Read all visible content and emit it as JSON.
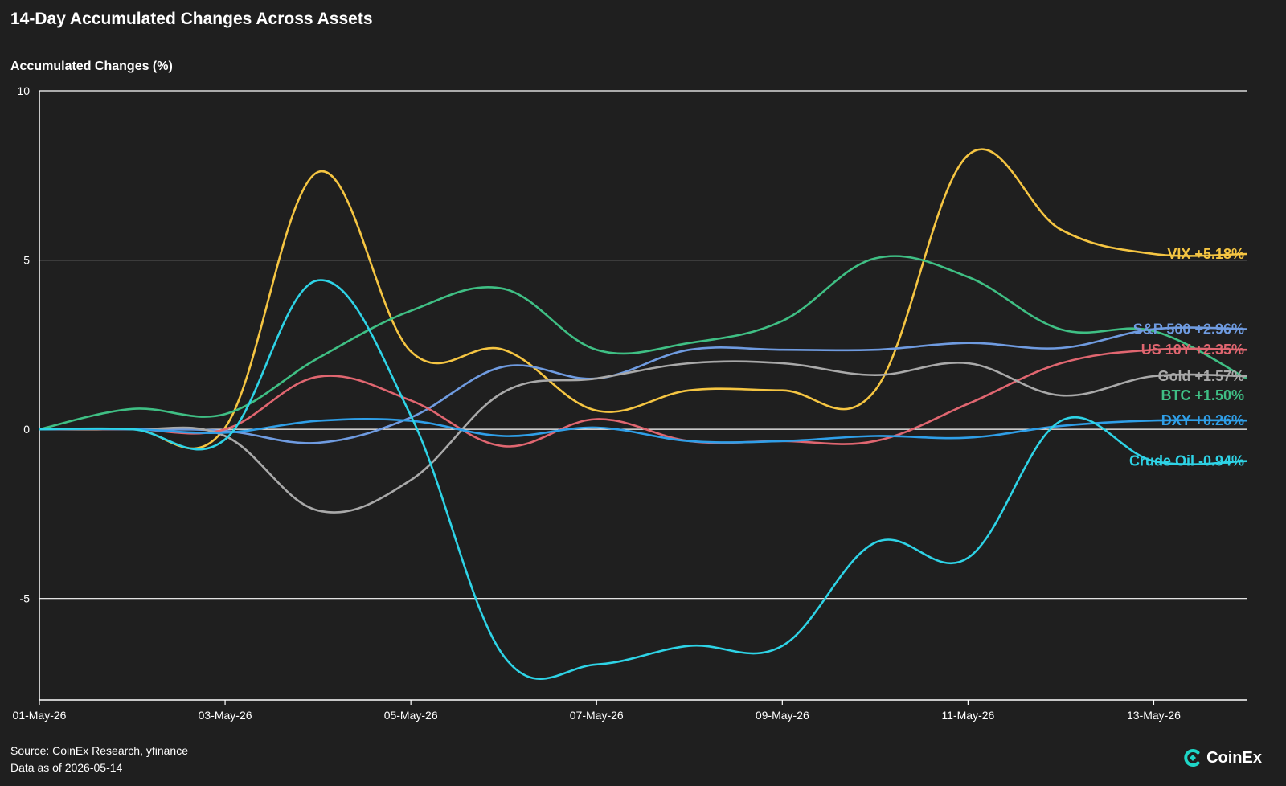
{
  "header": {
    "title": "14-Day Accumulated Changes Across Assets",
    "y_axis_title": "Accumulated Changes (%)"
  },
  "footer": {
    "source": "Source: CoinEx Research, yfinance",
    "data_as_of": "Data as of 2026-05-14",
    "brand": "CoinEx"
  },
  "colors": {
    "background": "#1f1f1f",
    "grid": "#ffffff",
    "brand_accent": "#1ed6c7"
  },
  "chart_data": {
    "type": "line",
    "x": [
      "01-May-26",
      "02-May-26",
      "03-May-26",
      "04-May-26",
      "05-May-26",
      "06-May-26",
      "07-May-26",
      "08-May-26",
      "09-May-26",
      "10-May-26",
      "11-May-26",
      "12-May-26",
      "13-May-26",
      "14-May-26"
    ],
    "x_ticks": [
      "01-May-26",
      "03-May-26",
      "05-May-26",
      "07-May-26",
      "09-May-26",
      "11-May-26",
      "13-May-26"
    ],
    "y_ticks": [
      -5,
      0,
      5,
      10
    ],
    "ylim": [
      -8,
      10
    ],
    "ylabel": "Accumulated Changes (%)",
    "grid": true,
    "series": [
      {
        "name": "VIX",
        "label": "VIX +5.18%",
        "color": "#f5c542",
        "values": [
          0,
          0,
          0.05,
          7.6,
          2.3,
          2.35,
          0.55,
          1.15,
          1.15,
          1.15,
          8.1,
          5.9,
          5.18,
          5.18
        ]
      },
      {
        "name": "S&P 500",
        "label": "S&P 500 +2.96%",
        "color": "#6f9be0",
        "values": [
          0,
          0,
          -0.05,
          -0.4,
          0.35,
          1.85,
          1.5,
          2.35,
          2.35,
          2.35,
          2.55,
          2.4,
          2.96,
          2.96
        ]
      },
      {
        "name": "BTC",
        "label": "BTC +1.50%",
        "color": "#3fbf84",
        "values": [
          0,
          0.6,
          0.45,
          2.1,
          3.5,
          4.15,
          2.35,
          2.55,
          3.2,
          5.05,
          4.5,
          2.95,
          2.9,
          1.5
        ]
      },
      {
        "name": "US 10Y",
        "label": "US 10Y +2.35%",
        "color": "#e06670",
        "values": [
          0,
          0,
          0,
          1.55,
          0.85,
          -0.5,
          0.3,
          -0.35,
          -0.35,
          -0.35,
          0.75,
          1.95,
          2.35,
          2.35
        ]
      },
      {
        "name": "Gold",
        "label": "Gold +1.57%",
        "color": "#a9a9a9",
        "values": [
          0,
          0,
          -0.2,
          -2.4,
          -1.5,
          1.1,
          1.5,
          1.95,
          1.95,
          1.6,
          1.95,
          1.0,
          1.57,
          1.57
        ]
      },
      {
        "name": "DXY",
        "label": "DXY +0.26%",
        "color": "#2f9fe8",
        "values": [
          0,
          0,
          -0.1,
          0.25,
          0.25,
          -0.2,
          0.05,
          -0.35,
          -0.35,
          -0.2,
          -0.25,
          0.1,
          0.26,
          0.26
        ]
      },
      {
        "name": "Crude Oil",
        "label": "Crude Oil -0.94%",
        "color": "#2ed3e6",
        "values": [
          0,
          0,
          -0.3,
          4.4,
          0.4,
          -6.7,
          -6.95,
          -6.4,
          -6.4,
          -3.35,
          -3.8,
          0.25,
          -0.94,
          -0.94
        ]
      }
    ]
  }
}
